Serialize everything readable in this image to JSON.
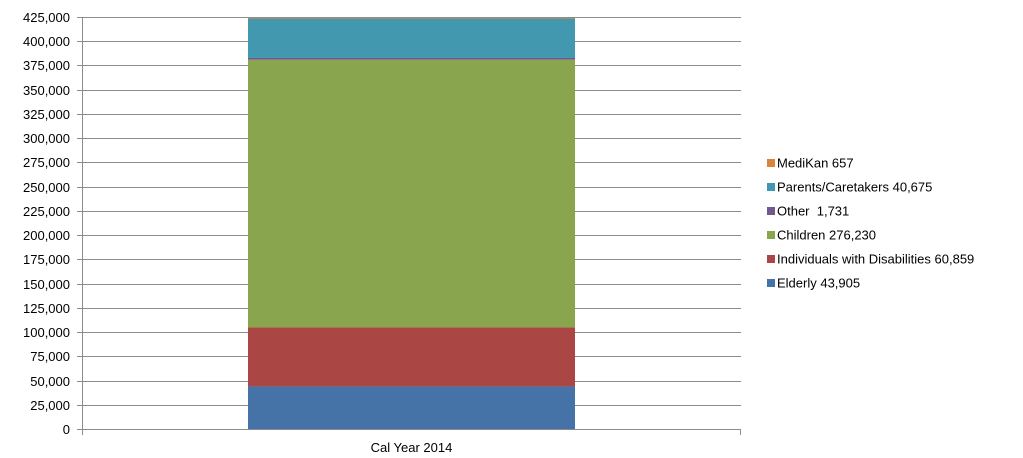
{
  "chart_data": {
    "type": "bar",
    "stacked": true,
    "title": "",
    "xlabel": "",
    "ylabel": "",
    "categories": [
      "Cal Year 2014"
    ],
    "ylim": [
      0,
      425000
    ],
    "y_tick_step": 25000,
    "y_tick_labels": [
      "0",
      "25,000",
      "50,000",
      "75,000",
      "100,000",
      "125,000",
      "150,000",
      "175,000",
      "200,000",
      "225,000",
      "250,000",
      "275,000",
      "300,000",
      "325,000",
      "350,000",
      "375,000",
      "400,000",
      "425,000"
    ],
    "grid": true,
    "legend_position": "right",
    "series": [
      {
        "name": "Elderly 43,905",
        "values": [
          43905
        ],
        "color": "#4572A7"
      },
      {
        "name": "Individuals with Disabilities 60,859",
        "values": [
          60859
        ],
        "color": "#AA4643"
      },
      {
        "name": "Children 276,230",
        "values": [
          276230
        ],
        "color": "#89A54E"
      },
      {
        "name": "Other  1,731",
        "values": [
          1731
        ],
        "color": "#71588F"
      },
      {
        "name": "Parents/Caretakers 40,675",
        "values": [
          40675
        ],
        "color": "#4198AF"
      },
      {
        "name": "MediKan 657",
        "values": [
          657
        ],
        "color": "#DB843D"
      }
    ]
  }
}
